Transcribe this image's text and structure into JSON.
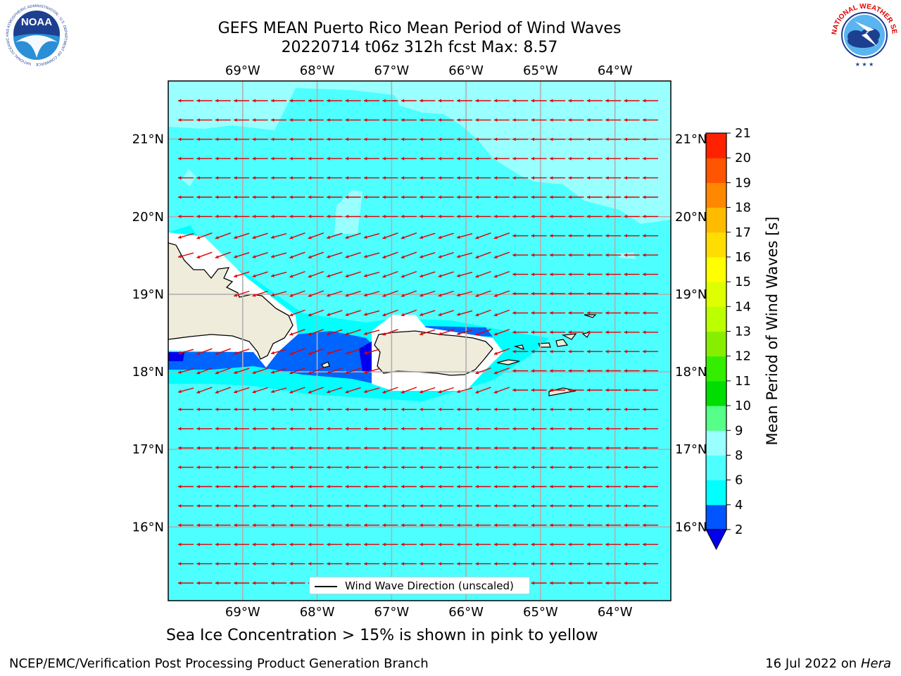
{
  "header": {
    "title_line1": "GEFS MEAN Puerto Rico Mean Period of Wind Waves",
    "title_line2": "20220714 t06z 312h fcst   Max: 8.57"
  },
  "logos": {
    "left": "NOAA",
    "left_ring_text": "NATIONAL OCEANIC AND ATMOSPHERIC ADMINISTRATION · U.S. DEPARTMENT OF COMMERCE",
    "right_ring_text": "NATIONAL WEATHER SERVICE"
  },
  "map": {
    "lon_labels": [
      "69°W",
      "68°W",
      "67°W",
      "66°W",
      "65°W",
      "64°W"
    ],
    "lat_labels": [
      "21°N",
      "20°N",
      "19°N",
      "18°N",
      "17°N",
      "16°N"
    ],
    "lon_range": [
      -70.0,
      -63.25
    ],
    "lat_range": [
      15.05,
      21.75
    ],
    "ocean_color": "#4dffff",
    "land_color": "#efecdc",
    "arrow_color": "#e00000",
    "arrow_direction": "westward (easterly wind waves)",
    "legend_label": "Wind Wave Direction (unscaled)"
  },
  "colorbar": {
    "title": "Mean Period of Wind Waves [s]",
    "ticks": [
      "2",
      "4",
      "6",
      "8",
      "9",
      "10",
      "11",
      "12",
      "13",
      "14",
      "15",
      "16",
      "17",
      "18",
      "19",
      "20",
      "21"
    ],
    "bounds": [
      2,
      4,
      6,
      8,
      9,
      10,
      11,
      12,
      13,
      14,
      15,
      16,
      17,
      18,
      19,
      20,
      21
    ],
    "colors": [
      "#0055ff",
      "#00ffff",
      "#4dffff",
      "#99ffff",
      "#55ff88",
      "#00dd00",
      "#33ee00",
      "#88ee00",
      "#bbff00",
      "#ddff00",
      "#ffff00",
      "#ffdd00",
      "#ffbb00",
      "#ff8800",
      "#ff5500",
      "#ff2200"
    ],
    "under_color": "#0000ee"
  },
  "caption": "Sea Ice Concentration > 15% is shown in pink to yellow",
  "footer": {
    "left": "NCEP/EMC/Verification Post Processing Product Generation Branch",
    "right_date": "16 Jul 2022 on ",
    "right_host": "Hera"
  }
}
